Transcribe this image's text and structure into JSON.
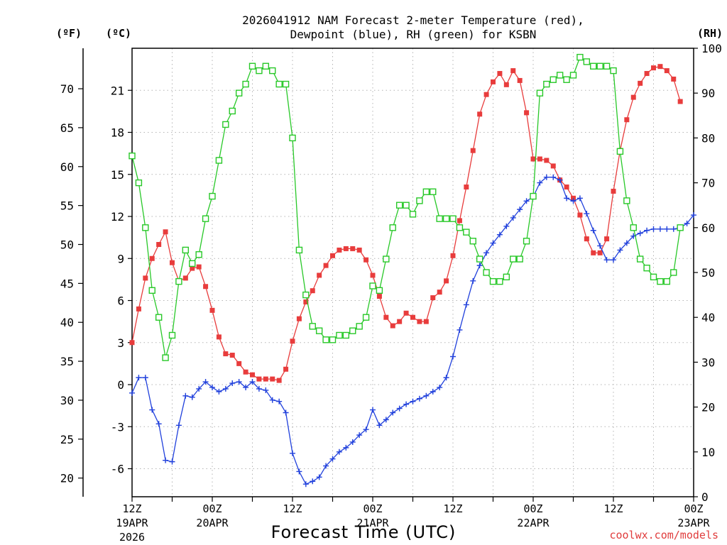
{
  "chart_data": {
    "type": "line",
    "title_line1": "2026041912 NAM Forecast 2-meter Temperature (red),",
    "title_line2": "Dewpoint (blue), RH (green) for KSBN",
    "unit_f": "(ºF)",
    "unit_c": "(ºC)",
    "unit_rh": "(RH)",
    "xlabel": "Forecast Time (UTC)",
    "credit": "coolwx.com/models",
    "grid": true,
    "x_range_hours": [
      0,
      84
    ],
    "c_range": [
      -8,
      24
    ],
    "f_range": [
      17.6,
      75.2
    ],
    "rh_range": [
      0,
      100
    ],
    "f_ticks": [
      "20",
      "25",
      "30",
      "35",
      "40",
      "45",
      "50",
      "55",
      "60",
      "65",
      "70"
    ],
    "c_ticks": [
      "-6",
      "-3",
      "0",
      "3",
      "6",
      "9",
      "12",
      "15",
      "18",
      "21"
    ],
    "rh_ticks": [
      "0",
      "10",
      "20",
      "30",
      "40",
      "50",
      "60",
      "70",
      "80",
      "90",
      "100"
    ],
    "x_ticks": [
      {
        "hour": 0,
        "time": "12Z",
        "date": "19APR",
        "year": "2026"
      },
      {
        "hour": 12,
        "time": "00Z",
        "date": "20APR",
        "year": ""
      },
      {
        "hour": 24,
        "time": "12Z",
        "date": "",
        "year": ""
      },
      {
        "hour": 36,
        "time": "00Z",
        "date": "21APR",
        "year": ""
      },
      {
        "hour": 48,
        "time": "12Z",
        "date": "",
        "year": ""
      },
      {
        "hour": 60,
        "time": "00Z",
        "date": "22APR",
        "year": ""
      },
      {
        "hour": 72,
        "time": "12Z",
        "date": "",
        "year": ""
      },
      {
        "hour": 84,
        "time": "00Z",
        "date": "23APR",
        "year": ""
      }
    ],
    "series": [
      {
        "key": "temperature",
        "color": "#e83c3c",
        "marker": "filled-square",
        "unit": "C",
        "values": [
          [
            0,
            3.0
          ],
          [
            1,
            5.4
          ],
          [
            2,
            7.6
          ],
          [
            3,
            9.0
          ],
          [
            4,
            10.0
          ],
          [
            5,
            10.9
          ],
          [
            6,
            8.7
          ],
          [
            7,
            7.4
          ],
          [
            8,
            7.6
          ],
          [
            9,
            8.3
          ],
          [
            10,
            8.4
          ],
          [
            11,
            7.0
          ],
          [
            12,
            5.3
          ],
          [
            13,
            3.4
          ],
          [
            14,
            2.2
          ],
          [
            15,
            2.1
          ],
          [
            16,
            1.5
          ],
          [
            17,
            0.9
          ],
          [
            18,
            0.7
          ],
          [
            19,
            0.4
          ],
          [
            20,
            0.4
          ],
          [
            21,
            0.4
          ],
          [
            22,
            0.3
          ],
          [
            23,
            1.1
          ],
          [
            24,
            3.1
          ],
          [
            25,
            4.7
          ],
          [
            26,
            5.9
          ],
          [
            27,
            6.7
          ],
          [
            28,
            7.8
          ],
          [
            29,
            8.5
          ],
          [
            30,
            9.2
          ],
          [
            31,
            9.6
          ],
          [
            32,
            9.7
          ],
          [
            33,
            9.7
          ],
          [
            34,
            9.6
          ],
          [
            35,
            8.9
          ],
          [
            36,
            7.8
          ],
          [
            37,
            6.3
          ],
          [
            38,
            4.8
          ],
          [
            39,
            4.2
          ],
          [
            40,
            4.5
          ],
          [
            41,
            5.1
          ],
          [
            42,
            4.8
          ],
          [
            43,
            4.5
          ],
          [
            44,
            4.5
          ],
          [
            45,
            6.2
          ],
          [
            46,
            6.6
          ],
          [
            47,
            7.4
          ],
          [
            48,
            9.2
          ],
          [
            49,
            11.7
          ],
          [
            50,
            14.1
          ],
          [
            51,
            16.7
          ],
          [
            52,
            19.3
          ],
          [
            53,
            20.7
          ],
          [
            54,
            21.6
          ],
          [
            55,
            22.2
          ],
          [
            56,
            21.4
          ],
          [
            57,
            22.4
          ],
          [
            58,
            21.7
          ],
          [
            59,
            19.4
          ],
          [
            60,
            16.1
          ],
          [
            61,
            16.1
          ],
          [
            62,
            16.0
          ],
          [
            63,
            15.6
          ],
          [
            64,
            14.6
          ],
          [
            65,
            14.1
          ],
          [
            66,
            13.3
          ],
          [
            67,
            12.1
          ],
          [
            68,
            10.4
          ],
          [
            69,
            9.4
          ],
          [
            70,
            9.4
          ],
          [
            71,
            10.4
          ],
          [
            72,
            13.8
          ],
          [
            73,
            16.7
          ],
          [
            74,
            18.9
          ],
          [
            75,
            20.5
          ],
          [
            76,
            21.5
          ],
          [
            77,
            22.2
          ],
          [
            78,
            22.6
          ],
          [
            79,
            22.7
          ],
          [
            80,
            22.4
          ],
          [
            81,
            21.8
          ],
          [
            82,
            20.2
          ]
        ]
      },
      {
        "key": "dewpoint",
        "color": "#2040dc",
        "marker": "plus",
        "unit": "C",
        "values": [
          [
            0,
            -0.6
          ],
          [
            1,
            0.5
          ],
          [
            2,
            0.5
          ],
          [
            3,
            -1.8
          ],
          [
            4,
            -2.8
          ],
          [
            5,
            -5.4
          ],
          [
            6,
            -5.5
          ],
          [
            7,
            -2.9
          ],
          [
            8,
            -0.8
          ],
          [
            9,
            -0.9
          ],
          [
            10,
            -0.3
          ],
          [
            11,
            0.2
          ],
          [
            12,
            -0.2
          ],
          [
            13,
            -0.5
          ],
          [
            14,
            -0.3
          ],
          [
            15,
            0.1
          ],
          [
            16,
            0.2
          ],
          [
            17,
            -0.2
          ],
          [
            18,
            0.2
          ],
          [
            19,
            -0.3
          ],
          [
            20,
            -0.4
          ],
          [
            21,
            -1.1
          ],
          [
            22,
            -1.2
          ],
          [
            23,
            -2.0
          ],
          [
            24,
            -4.9
          ],
          [
            25,
            -6.2
          ],
          [
            26,
            -7.1
          ],
          [
            27,
            -6.9
          ],
          [
            28,
            -6.6
          ],
          [
            29,
            -5.8
          ],
          [
            30,
            -5.3
          ],
          [
            31,
            -4.8
          ],
          [
            32,
            -4.5
          ],
          [
            33,
            -4.1
          ],
          [
            34,
            -3.6
          ],
          [
            35,
            -3.2
          ],
          [
            36,
            -1.8
          ],
          [
            37,
            -2.9
          ],
          [
            38,
            -2.5
          ],
          [
            39,
            -2.0
          ],
          [
            40,
            -1.7
          ],
          [
            41,
            -1.4
          ],
          [
            42,
            -1.2
          ],
          [
            43,
            -1.0
          ],
          [
            44,
            -0.8
          ],
          [
            45,
            -0.5
          ],
          [
            46,
            -0.2
          ],
          [
            47,
            0.5
          ],
          [
            48,
            2.0
          ],
          [
            49,
            3.9
          ],
          [
            50,
            5.7
          ],
          [
            51,
            7.4
          ],
          [
            52,
            8.5
          ],
          [
            53,
            9.4
          ],
          [
            54,
            10.1
          ],
          [
            55,
            10.7
          ],
          [
            56,
            11.3
          ],
          [
            57,
            11.9
          ],
          [
            58,
            12.5
          ],
          [
            59,
            13.1
          ],
          [
            60,
            13.4
          ],
          [
            61,
            14.4
          ],
          [
            62,
            14.8
          ],
          [
            63,
            14.8
          ],
          [
            64,
            14.6
          ],
          [
            65,
            13.3
          ],
          [
            66,
            13.1
          ],
          [
            67,
            13.3
          ],
          [
            68,
            12.2
          ],
          [
            69,
            11.0
          ],
          [
            70,
            9.9
          ],
          [
            71,
            8.9
          ],
          [
            72,
            8.9
          ],
          [
            73,
            9.6
          ],
          [
            74,
            10.1
          ],
          [
            75,
            10.6
          ],
          [
            76,
            10.8
          ],
          [
            77,
            11.0
          ],
          [
            78,
            11.1
          ],
          [
            79,
            11.1
          ],
          [
            80,
            11.1
          ],
          [
            81,
            11.1
          ],
          [
            82,
            11.2
          ],
          [
            83,
            11.5
          ],
          [
            84,
            12.1
          ]
        ]
      },
      {
        "key": "relative_humidity",
        "color": "#28c828",
        "marker": "open-square",
        "unit": "%",
        "values": [
          [
            0,
            76
          ],
          [
            1,
            70
          ],
          [
            2,
            60
          ],
          [
            3,
            46
          ],
          [
            4,
            40
          ],
          [
            5,
            31
          ],
          [
            6,
            36
          ],
          [
            7,
            48
          ],
          [
            8,
            55
          ],
          [
            9,
            52
          ],
          [
            10,
            54
          ],
          [
            11,
            62
          ],
          [
            12,
            67
          ],
          [
            13,
            75
          ],
          [
            14,
            83
          ],
          [
            15,
            86
          ],
          [
            16,
            90
          ],
          [
            17,
            92
          ],
          [
            18,
            96
          ],
          [
            19,
            95
          ],
          [
            20,
            96
          ],
          [
            21,
            95
          ],
          [
            22,
            92
          ],
          [
            23,
            92
          ],
          [
            24,
            80
          ],
          [
            25,
            55
          ],
          [
            26,
            45
          ],
          [
            27,
            38
          ],
          [
            28,
            37
          ],
          [
            29,
            35
          ],
          [
            30,
            35
          ],
          [
            31,
            36
          ],
          [
            32,
            36
          ],
          [
            33,
            37
          ],
          [
            34,
            38
          ],
          [
            35,
            40
          ],
          [
            36,
            47
          ],
          [
            37,
            46
          ],
          [
            38,
            53
          ],
          [
            39,
            60
          ],
          [
            40,
            65
          ],
          [
            41,
            65
          ],
          [
            42,
            63
          ],
          [
            43,
            66
          ],
          [
            44,
            68
          ],
          [
            45,
            68
          ],
          [
            46,
            62
          ],
          [
            47,
            62
          ],
          [
            48,
            62
          ],
          [
            49,
            60
          ],
          [
            50,
            59
          ],
          [
            51,
            57
          ],
          [
            52,
            53
          ],
          [
            53,
            50
          ],
          [
            54,
            48
          ],
          [
            55,
            48
          ],
          [
            56,
            49
          ],
          [
            57,
            53
          ],
          [
            58,
            53
          ],
          [
            59,
            57
          ],
          [
            60,
            67
          ],
          [
            61,
            90
          ],
          [
            62,
            92
          ],
          [
            63,
            93
          ],
          [
            64,
            94
          ],
          [
            65,
            93
          ],
          [
            66,
            94
          ],
          [
            67,
            98
          ],
          [
            68,
            97
          ],
          [
            69,
            96
          ],
          [
            70,
            96
          ],
          [
            71,
            96
          ],
          [
            72,
            95
          ],
          [
            73,
            77
          ],
          [
            74,
            66
          ],
          [
            75,
            60
          ],
          [
            76,
            53
          ],
          [
            77,
            51
          ],
          [
            78,
            49
          ],
          [
            79,
            48
          ],
          [
            80,
            48
          ],
          [
            81,
            50
          ],
          [
            82,
            60
          ]
        ]
      }
    ]
  }
}
